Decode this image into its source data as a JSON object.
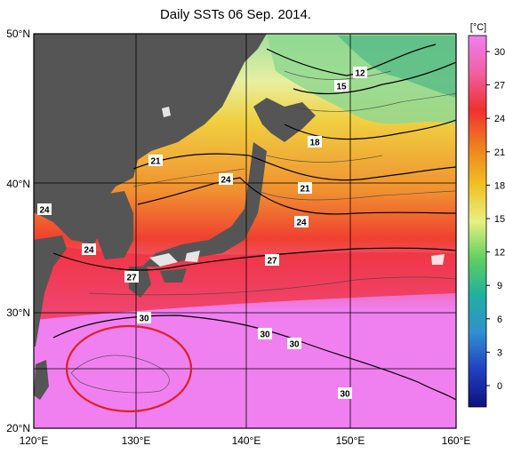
{
  "title": "Daily SSTs 06 Sep. 2014.",
  "colorbar": {
    "unit": "[°C]",
    "ticks": [
      "30",
      "27",
      "24",
      "21",
      "18",
      "15",
      "12",
      "9",
      "6",
      "3",
      "0"
    ],
    "colors": [
      "#f080f0",
      "#f03030",
      "#f08020",
      "#f0c020",
      "#e8e040",
      "#e8f080",
      "#d0f0a0",
      "#60d060",
      "#20b0a0",
      "#3060d0",
      "#2020c0",
      "#101080"
    ]
  },
  "axes": {
    "lat_labels": [
      "50°N",
      "40°N",
      "30°N",
      "20°N"
    ],
    "lon_labels": [
      "120°E",
      "130°E",
      "140°E",
      "150°E",
      "160°E"
    ]
  },
  "isotherm_labels": [
    {
      "text": "12",
      "color": "#ffffff"
    },
    {
      "text": "15",
      "color": "#ffffff"
    },
    {
      "text": "18",
      "color": "#ffffff"
    },
    {
      "text": "21",
      "color": "#ffffff"
    },
    {
      "text": "24",
      "color": "#ffffff"
    },
    {
      "text": "21",
      "color": "#ffffff"
    },
    {
      "text": "24",
      "color": "#ffffff"
    },
    {
      "text": "24",
      "color": "#ffffff"
    },
    {
      "text": "24",
      "color": "#ffffff"
    },
    {
      "text": "27",
      "color": "#ffffff"
    },
    {
      "text": "27",
      "color": "#ffffff"
    },
    {
      "text": "30",
      "color": "#ffffff"
    },
    {
      "text": "30",
      "color": "#ffffff"
    },
    {
      "text": "30",
      "color": "#ffffff"
    },
    {
      "text": "30",
      "color": "#ffffff"
    }
  ],
  "land_color": "#555555",
  "highlight_color": "#e02020"
}
